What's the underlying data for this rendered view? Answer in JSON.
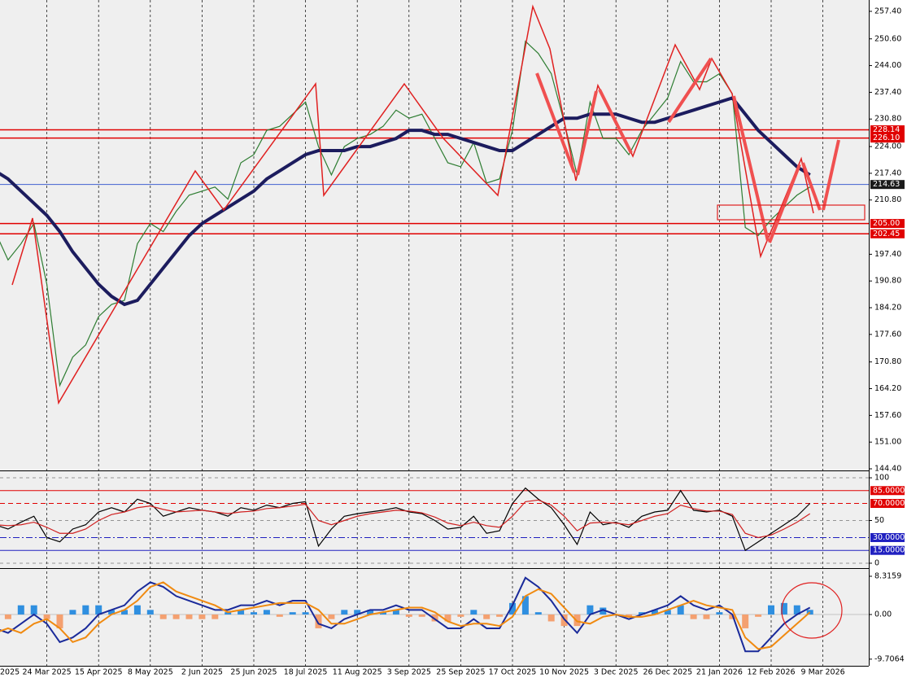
{
  "chart_data": [
    {
      "type": "candle-line",
      "categories": [
        "2025",
        null,
        null,
        null,
        "24 Mar 2025",
        null,
        null,
        null,
        "15 Apr 2025",
        null,
        null,
        null,
        "8 May 2025",
        null,
        null,
        null,
        "2 Jun 2025",
        null,
        null,
        null,
        "25 Jun 2025",
        null,
        null,
        null,
        "18 Jul 2025",
        null,
        null,
        null,
        "11 Aug 2025",
        null,
        null,
        null,
        "3 Sep 2025",
        null,
        null,
        null,
        "25 Sep 2025",
        null,
        null,
        null,
        "17 Oct 2025",
        null,
        null,
        null,
        "10 Nov 2025",
        null,
        null,
        null,
        "3 Dec 2025",
        null,
        null,
        null,
        "26 Dec 2025",
        null,
        null,
        null,
        "21 Jan 2026",
        null,
        null,
        null,
        "12 Feb 2026",
        null,
        null,
        null,
        "9 Mar 2026"
      ],
      "series": [
        {
          "color": "#2e7d32",
          "values": [
            203,
            196,
            200,
            205,
            190,
            165,
            172,
            175,
            182,
            185,
            186,
            200,
            205,
            203,
            208,
            212,
            213,
            214,
            211,
            220,
            222,
            228,
            229,
            232,
            235,
            224,
            217,
            224,
            226,
            227,
            229,
            233,
            231,
            232,
            226,
            220,
            219,
            225,
            215,
            216,
            228,
            250,
            247,
            242,
            230,
            217,
            235,
            226,
            226,
            222,
            228,
            232,
            236,
            245,
            240,
            240,
            242,
            237,
            204,
            202,
            206,
            209,
            212,
            214,
            null
          ]
        },
        {
          "color": "#1c1c5e",
          "values": [
            218,
            216,
            213,
            210,
            207,
            203,
            198,
            194,
            190,
            187,
            185,
            186,
            190,
            194,
            198,
            202,
            205,
            207,
            209,
            211,
            213,
            216,
            218,
            220,
            222,
            223,
            223,
            223,
            224,
            224,
            225,
            226,
            228,
            228,
            227,
            227,
            226,
            225,
            224,
            223,
            223,
            225,
            227,
            229,
            231,
            231,
            232,
            232,
            232,
            231,
            230,
            230,
            231,
            232,
            233,
            234,
            235,
            236,
            232,
            228,
            225,
            222,
            219,
            217,
            null
          ]
        }
      ],
      "ylim": [
        144.0,
        260.2
      ],
      "yticks": [
        {
          "value": 257.4,
          "label": "257.40"
        },
        {
          "value": 250.6,
          "label": "250.60"
        },
        {
          "value": 244,
          "label": "244.00"
        },
        {
          "value": 237.4,
          "label": "237.40"
        },
        {
          "value": 230.8,
          "label": "230.80"
        },
        {
          "value": 224,
          "label": "224.00"
        },
        {
          "value": 217.4,
          "label": "217.40"
        },
        {
          "value": 210.8,
          "label": "210.80"
        },
        {
          "value": 197.4,
          "label": "197.40"
        },
        {
          "value": 190.8,
          "label": "190.80"
        },
        {
          "value": 184.2,
          "label": "184.20"
        },
        {
          "value": 177.6,
          "label": "177.60"
        },
        {
          "value": 170.8,
          "label": "170.80"
        },
        {
          "value": 164.2,
          "label": "164.20"
        },
        {
          "value": 157.6,
          "label": "157.60"
        },
        {
          "value": 151,
          "label": "151.00"
        },
        {
          "value": 144.4,
          "label": "144.40"
        }
      ],
      "levels": [
        {
          "value": 228.14,
          "label": "228.14",
          "color": "#e00000"
        },
        {
          "value": 226.1,
          "label": "226.10",
          "color": "#e00000"
        },
        {
          "value": 214.63,
          "label": "214.63",
          "color": "#4060d0"
        },
        {
          "value": 205,
          "label": "205.00",
          "color": "#e00000"
        },
        {
          "value": 202.45,
          "label": "202.45",
          "color": "#e00000"
        }
      ],
      "grid": true
    },
    {
      "type": "oscillator",
      "series": [
        {
          "color": "#000000",
          "values": [
            45,
            40,
            48,
            55,
            30,
            25,
            40,
            45,
            60,
            65,
            60,
            75,
            70,
            55,
            60,
            65,
            62,
            60,
            55,
            65,
            62,
            68,
            65,
            70,
            72,
            20,
            40,
            55,
            58,
            60,
            62,
            65,
            60,
            58,
            50,
            40,
            42,
            55,
            35,
            38,
            70,
            88,
            75,
            65,
            45,
            22,
            60,
            45,
            48,
            42,
            55,
            60,
            62,
            85,
            62,
            60,
            62,
            55,
            15,
            25,
            35,
            45,
            55,
            70,
            null
          ]
        },
        {
          "color": "#d02020",
          "values": [
            45,
            44,
            45,
            48,
            42,
            35,
            35,
            40,
            50,
            57,
            60,
            65,
            67,
            63,
            60,
            61,
            62,
            60,
            58,
            60,
            61,
            64,
            65,
            67,
            69,
            50,
            45,
            50,
            55,
            58,
            60,
            62,
            61,
            59,
            54,
            47,
            44,
            48,
            44,
            42,
            55,
            72,
            74,
            68,
            55,
            38,
            47,
            48,
            47,
            45,
            50,
            55,
            58,
            68,
            64,
            61,
            61,
            57,
            35,
            30,
            33,
            40,
            48,
            58,
            null
          ]
        }
      ],
      "ylim": [
        -4.8,
        106.7
      ],
      "yticks": [
        100,
        50,
        0
      ],
      "levels": [
        {
          "value": 85,
          "label": "85.0000",
          "color": "#e00000"
        },
        {
          "value": 70,
          "label": "70.0000",
          "color": "#e00000"
        },
        {
          "value": 30,
          "label": "30.0000",
          "color": "#2020c0"
        },
        {
          "value": 15,
          "label": "15.0000",
          "color": "#2020c0"
        }
      ]
    },
    {
      "type": "macd",
      "histogram": {
        "up_color": "#2f8fe0",
        "down_color": "#f4a070",
        "values": [
          1,
          -1,
          2,
          2,
          -1,
          -3,
          1,
          2,
          2,
          1,
          1,
          2,
          1,
          -1,
          -1,
          -1,
          -1,
          -1,
          0.5,
          1,
          0.5,
          1,
          -0.5,
          0.5,
          0.5,
          -3,
          -1,
          1,
          1,
          1,
          0.5,
          1,
          -0.5,
          -0.5,
          -1.5,
          -1.5,
          -0.5,
          1,
          -1,
          -0.5,
          2.5,
          4,
          0.5,
          -1.5,
          -2.5,
          -2.5,
          2,
          1.5,
          0,
          -0.5,
          0.5,
          1,
          1,
          2,
          -1,
          -1,
          0.5,
          -1,
          -3,
          -0.5,
          2,
          2.5,
          2,
          1,
          null
        ]
      },
      "series": [
        {
          "color": "#1a2a9a",
          "values": [
            -3,
            -4,
            -2,
            0,
            -2,
            -6,
            -5,
            -3,
            0,
            1,
            2,
            5,
            7,
            6,
            4,
            3,
            2,
            1,
            1,
            2,
            2,
            3,
            2,
            3,
            3,
            -2,
            -3,
            -1,
            0,
            1,
            1,
            2,
            1,
            1,
            -1,
            -3,
            -3,
            -1,
            -3,
            -3,
            2,
            8,
            6,
            3,
            -1,
            -4,
            0,
            1,
            0,
            -1,
            0,
            1,
            2,
            4,
            2,
            1,
            2,
            0,
            -8,
            -8,
            -5,
            -2,
            0,
            1.5,
            null
          ]
        },
        {
          "color": "#f08a10",
          "values": [
            -4,
            -3,
            -4,
            -2,
            -1,
            -3,
            -6,
            -5,
            -2,
            0,
            1,
            3,
            6,
            7,
            5,
            4,
            3,
            2,
            0.5,
            1,
            1.5,
            2,
            2.5,
            2.5,
            2.5,
            1,
            -2,
            -2,
            -1,
            0,
            0.5,
            1,
            1.5,
            1.5,
            0.5,
            -1.5,
            -2.5,
            -2,
            -2,
            -2.5,
            -0.5,
            4,
            5.5,
            4.5,
            1.5,
            -1.5,
            -2,
            -0.5,
            0,
            -0.5,
            -0.5,
            0,
            1,
            2,
            3,
            2,
            1.5,
            1,
            -5,
            -7.5,
            -7,
            -4.5,
            -2,
            0.5,
            null
          ]
        }
      ],
      "ylim": [
        -11.15,
        9.73
      ],
      "yticks": [
        8.3159,
        {
          "value": 0,
          "label": "0.00"
        },
        -9.7064
      ]
    }
  ]
}
